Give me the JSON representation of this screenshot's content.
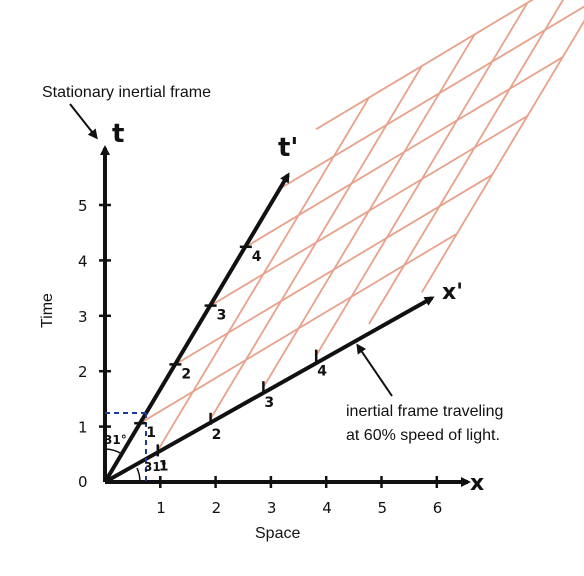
{
  "labels": {
    "stationary_frame": "Stationary inertial frame",
    "moving_frame_line1": "inertial frame traveling",
    "moving_frame_line2": "at 60% speed of light.",
    "x_axis_name": "Space",
    "y_axis_name": "Time",
    "t_axis": "t",
    "x_axis": "x",
    "t_prime_axis": "t'",
    "x_prime_axis": "x'",
    "origin": "0",
    "angle_upper": "31°",
    "angle_lower": "31°"
  },
  "x_ticks": [
    "1",
    "2",
    "3",
    "4",
    "5",
    "6"
  ],
  "t_ticks": [
    "1",
    "2",
    "3",
    "4",
    "5"
  ],
  "t_prime_ticks": [
    "1",
    "2",
    "3",
    "4"
  ],
  "x_prime_ticks": [
    "1",
    "2",
    "3",
    "4"
  ],
  "grid": {
    "lines_per_direction": 6
  },
  "colors": {
    "axis": "#111111",
    "grid": "#e8a18a",
    "guide": "#1a3aa0"
  }
}
